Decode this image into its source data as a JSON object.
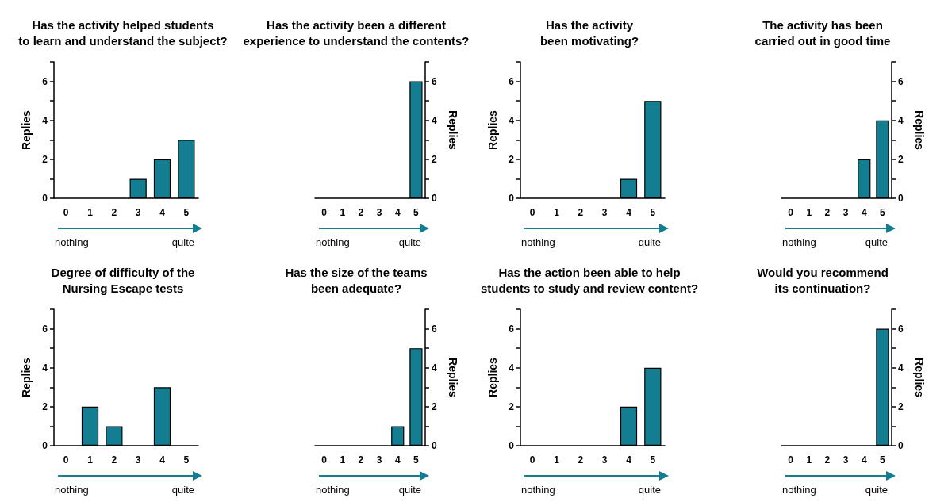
{
  "chart_data": [
    {
      "type": "bar",
      "title": "Has the activity helped students\nto learn and understand the subject?",
      "categories": [
        "0",
        "1",
        "2",
        "3",
        "4",
        "5"
      ],
      "ylabel": "Replies",
      "ylim": [
        0,
        7
      ],
      "yticks": [
        0,
        {
          "value": 1,
          "label": null
        },
        2,
        {
          "value": 3,
          "label": null
        },
        4,
        {
          "value": 5,
          "label": null
        },
        6,
        {
          "value": 7,
          "label": null
        }
      ],
      "annotations": [
        "nothing",
        "quite"
      ],
      "series": [
        {
          "color": "#137e92",
          "values": [
            0,
            0,
            0,
            1,
            2,
            3
          ]
        }
      ]
    },
    {
      "type": "bar",
      "title": "Has the activity been a different\nexperience to understand the contents?",
      "categories": [
        "0",
        "1",
        "2",
        "3",
        "4",
        "5"
      ],
      "y2label": "Replies",
      "y2lim": [
        0,
        7
      ],
      "y2ticks": [
        0,
        {
          "value": 1,
          "label": null
        },
        2,
        {
          "value": 3,
          "label": null
        },
        4,
        {
          "value": 5,
          "label": null
        },
        6,
        {
          "value": 7,
          "label": null
        }
      ],
      "annotations": [
        "nothing",
        "quite"
      ],
      "series": [
        {
          "color": "#137e92",
          "axis": "y2",
          "values": [
            0,
            0,
            0,
            0,
            0,
            6
          ]
        }
      ]
    },
    {
      "type": "bar",
      "title": "Has the activity\nbeen motivating?",
      "categories": [
        "0",
        "1",
        "2",
        "3",
        "4",
        "5"
      ],
      "ylabel": "Replies",
      "ylim": [
        0,
        7
      ],
      "yticks": [
        0,
        {
          "value": 1,
          "label": null
        },
        2,
        {
          "value": 3,
          "label": null
        },
        4,
        {
          "value": 5,
          "label": null
        },
        6,
        {
          "value": 7,
          "label": null
        }
      ],
      "annotations": [
        "nothing",
        "quite"
      ],
      "series": [
        {
          "color": "#137e92",
          "values": [
            0,
            0,
            0,
            0,
            1,
            5
          ]
        }
      ]
    },
    {
      "type": "bar",
      "title": "The activity has been\ncarried out in good time",
      "categories": [
        "0",
        "1",
        "2",
        "3",
        "4",
        "5"
      ],
      "y2label": "Replies",
      "y2lim": [
        0,
        7
      ],
      "y2ticks": [
        0,
        {
          "value": 1,
          "label": null
        },
        2,
        {
          "value": 3,
          "label": null
        },
        4,
        {
          "value": 5,
          "label": null
        },
        6,
        {
          "value": 7,
          "label": null
        }
      ],
      "annotations": [
        "nothing",
        "quite"
      ],
      "series": [
        {
          "color": "#137e92",
          "axis": "y2",
          "values": [
            0,
            0,
            0,
            0,
            2,
            4
          ]
        }
      ]
    },
    {
      "type": "bar",
      "title": "Degree of difficulty of the\nNursing Escape tests",
      "categories": [
        "0",
        "1",
        "2",
        "3",
        "4",
        "5"
      ],
      "ylabel": "Replies",
      "ylim": [
        0,
        7
      ],
      "yticks": [
        0,
        {
          "value": 1,
          "label": null
        },
        2,
        {
          "value": 3,
          "label": null
        },
        4,
        {
          "value": 5,
          "label": null
        },
        6,
        {
          "value": 7,
          "label": null
        }
      ],
      "annotations": [
        "nothing",
        "quite"
      ],
      "series": [
        {
          "color": "#137e92",
          "values": [
            0,
            2,
            1,
            0,
            3,
            0
          ]
        }
      ]
    },
    {
      "type": "bar",
      "title": "Has the size of the teams\nbeen adequate?",
      "categories": [
        "0",
        "1",
        "2",
        "3",
        "4",
        "5"
      ],
      "y2label": "Replies",
      "y2lim": [
        0,
        7
      ],
      "y2ticks": [
        0,
        {
          "value": 1,
          "label": null
        },
        2,
        {
          "value": 3,
          "label": null
        },
        4,
        {
          "value": 5,
          "label": null
        },
        6,
        {
          "value": 7,
          "label": null
        }
      ],
      "annotations": [
        "nothing",
        "quite"
      ],
      "series": [
        {
          "color": "#137e92",
          "axis": "y2",
          "values": [
            0,
            0,
            0,
            0,
            1,
            5
          ]
        }
      ]
    },
    {
      "type": "bar",
      "title": "Has the action been able to help\nstudents to study and review content?",
      "categories": [
        "0",
        "1",
        "2",
        "3",
        "4",
        "5"
      ],
      "ylabel": "Replies",
      "ylim": [
        0,
        7
      ],
      "yticks": [
        0,
        {
          "value": 1,
          "label": null
        },
        2,
        {
          "value": 3,
          "label": null
        },
        4,
        {
          "value": 5,
          "label": null
        },
        6,
        {
          "value": 7,
          "label": null
        }
      ],
      "annotations": [
        "nothing",
        "quite"
      ],
      "series": [
        {
          "color": "#137e92",
          "values": [
            0,
            0,
            0,
            0,
            2,
            4
          ]
        }
      ]
    },
    {
      "type": "bar",
      "title": "Would you recommend\nits continuation?",
      "categories": [
        "0",
        "1",
        "2",
        "3",
        "4",
        "5"
      ],
      "y2label": "Replies",
      "y2lim": [
        0,
        7
      ],
      "y2ticks": [
        0,
        {
          "value": 1,
          "label": null
        },
        2,
        {
          "value": 3,
          "label": null
        },
        4,
        {
          "value": 5,
          "label": null
        },
        6,
        {
          "value": 7,
          "label": null
        }
      ],
      "annotations": [
        "nothing",
        "quite"
      ],
      "series": [
        {
          "color": "#137e92",
          "axis": "y2",
          "values": [
            0,
            0,
            0,
            0,
            0,
            6
          ]
        }
      ]
    }
  ]
}
